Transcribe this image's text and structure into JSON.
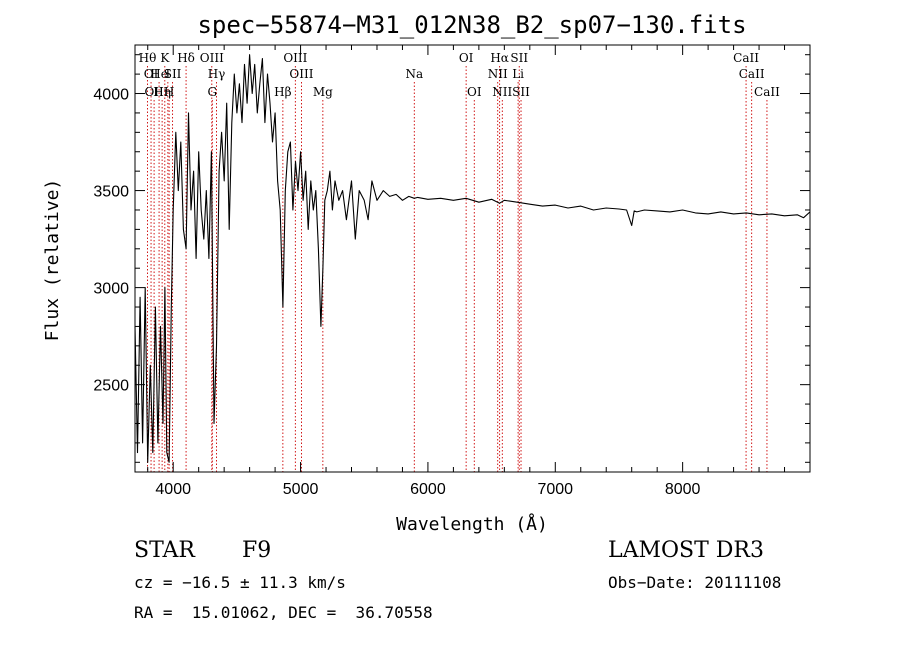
{
  "chart_data": {
    "type": "line",
    "title": "spec−55874−M31_012N38_B2_sp07−130.fits",
    "xlabel": "Wavelength (Å)",
    "ylabel": "Flux (relative)",
    "xlim": [
      3700,
      9000
    ],
    "ylim": [
      2050,
      4250
    ],
    "xticks": [
      4000,
      5000,
      6000,
      7000,
      8000
    ],
    "xtick_labels": [
      "4000",
      "5000",
      "6000",
      "7000",
      "8000"
    ],
    "yticks": [
      2500,
      3000,
      3500,
      4000
    ],
    "ytick_labels": [
      "2500",
      "3000",
      "3500",
      "4000"
    ],
    "grid": false,
    "line_color": "#000000",
    "marker_color": "#cc0000",
    "series": [
      {
        "name": "flux",
        "x": [
          3700,
          3720,
          3740,
          3760,
          3780,
          3800,
          3820,
          3840,
          3860,
          3880,
          3900,
          3920,
          3935,
          3950,
          3968,
          3985,
          4000,
          4020,
          4040,
          4060,
          4080,
          4101,
          4120,
          4140,
          4160,
          4180,
          4200,
          4220,
          4240,
          4260,
          4280,
          4300,
          4320,
          4340,
          4360,
          4380,
          4400,
          4420,
          4440,
          4460,
          4480,
          4500,
          4520,
          4540,
          4560,
          4580,
          4600,
          4620,
          4640,
          4660,
          4680,
          4700,
          4720,
          4740,
          4760,
          4780,
          4800,
          4820,
          4840,
          4861,
          4880,
          4900,
          4920,
          4940,
          4960,
          4980,
          5000,
          5020,
          5040,
          5060,
          5080,
          5100,
          5120,
          5140,
          5160,
          5175,
          5190,
          5210,
          5230,
          5250,
          5270,
          5300,
          5330,
          5360,
          5400,
          5430,
          5460,
          5500,
          5530,
          5560,
          5600,
          5650,
          5700,
          5750,
          5800,
          5850,
          5893,
          5920,
          6000,
          6100,
          6200,
          6300,
          6400,
          6500,
          6563,
          6600,
          6700,
          6800,
          6900,
          7000,
          7100,
          7200,
          7300,
          7400,
          7500,
          7560,
          7600,
          7620,
          7640,
          7700,
          7800,
          7900,
          8000,
          8100,
          8200,
          8300,
          8400,
          8500,
          8600,
          8700,
          8800,
          8900,
          8950,
          9000
        ],
        "values": [
          2800,
          2150,
          2950,
          2200,
          3000,
          2100,
          2600,
          2150,
          2900,
          2200,
          2800,
          2300,
          3000,
          2150,
          2100,
          2900,
          3400,
          3800,
          3500,
          3750,
          3300,
          3200,
          3900,
          3400,
          3600,
          3150,
          3700,
          3400,
          3250,
          3500,
          3150,
          3700,
          2300,
          2700,
          3600,
          3800,
          3550,
          3950,
          3300,
          3850,
          4100,
          3900,
          4050,
          3850,
          4150,
          3950,
          4200,
          4000,
          4150,
          3900,
          4050,
          4180,
          3850,
          4100,
          3950,
          3750,
          3900,
          3550,
          3400,
          2900,
          3500,
          3700,
          3750,
          3400,
          3650,
          3500,
          3700,
          3450,
          3600,
          3300,
          3550,
          3400,
          3500,
          3200,
          2800,
          3100,
          3450,
          3500,
          3600,
          3400,
          3550,
          3450,
          3500,
          3350,
          3550,
          3250,
          3500,
          3450,
          3350,
          3550,
          3450,
          3500,
          3470,
          3480,
          3450,
          3470,
          3460,
          3465,
          3455,
          3460,
          3450,
          3460,
          3440,
          3455,
          3435,
          3450,
          3440,
          3430,
          3420,
          3425,
          3410,
          3420,
          3400,
          3410,
          3405,
          3400,
          3320,
          3395,
          3390,
          3400,
          3395,
          3390,
          3400,
          3385,
          3380,
          3390,
          3380,
          3385,
          3375,
          3380,
          3370,
          3375,
          3360,
          3390
        ]
      }
    ],
    "line_markers": [
      {
        "label": "Hθ",
        "x": 3798,
        "row": 1
      },
      {
        "label": "OI",
        "x": 3826,
        "row": 2
      },
      {
        "label": "OII",
        "x": 3850,
        "row": 3
      },
      {
        "label": "He",
        "x": 3889,
        "row": 2
      },
      {
        "label": "Hη",
        "x": 3913,
        "row": 3
      },
      {
        "label": "K",
        "x": 3934,
        "row": 1
      },
      {
        "label": "I",
        "x": 3958,
        "row": 2
      },
      {
        "label": "SII",
        "x": 3995,
        "row": 2
      },
      {
        "label": "H",
        "x": 3968,
        "row": 3
      },
      {
        "label": "Hδ",
        "x": 4101,
        "row": 1
      },
      {
        "label": "OIII",
        "x": 4303,
        "row": 1
      },
      {
        "label": "Hγ",
        "x": 4340,
        "row": 2
      },
      {
        "label": "G",
        "x": 4307,
        "row": 3
      },
      {
        "label": "OIII",
        "x": 4959,
        "row": 1
      },
      {
        "label": "OIII",
        "x": 5007,
        "row": 2
      },
      {
        "label": "Hβ",
        "x": 4861,
        "row": 3
      },
      {
        "label": "Mg",
        "x": 5175,
        "row": 3
      },
      {
        "label": "Na",
        "x": 5893,
        "row": 2
      },
      {
        "label": "OI",
        "x": 6300,
        "row": 1
      },
      {
        "label": "OI",
        "x": 6364,
        "row": 3
      },
      {
        "label": "Hα",
        "x": 6563,
        "row": 1
      },
      {
        "label": "NII",
        "x": 6548,
        "row": 2
      },
      {
        "label": "NII",
        "x": 6584,
        "row": 3
      },
      {
        "label": "SII",
        "x": 6717,
        "row": 1
      },
      {
        "label": "Li",
        "x": 6708,
        "row": 2
      },
      {
        "label": "SII",
        "x": 6731,
        "row": 3
      },
      {
        "label": "CaII",
        "x": 8498,
        "row": 1
      },
      {
        "label": "CaII",
        "x": 8542,
        "row": 2
      },
      {
        "label": "CaII",
        "x": 8662,
        "row": 3
      }
    ]
  },
  "info": {
    "class_label": "STAR",
    "subclass_label": "F9",
    "survey_label": "LAMOST DR3",
    "cz_text": "cz = −16.5 ± 11.3 km/s",
    "obs_date_text": "Obs−Date: 20111108",
    "coords_text": "RA =  15.01062, DEC =  36.70558"
  }
}
